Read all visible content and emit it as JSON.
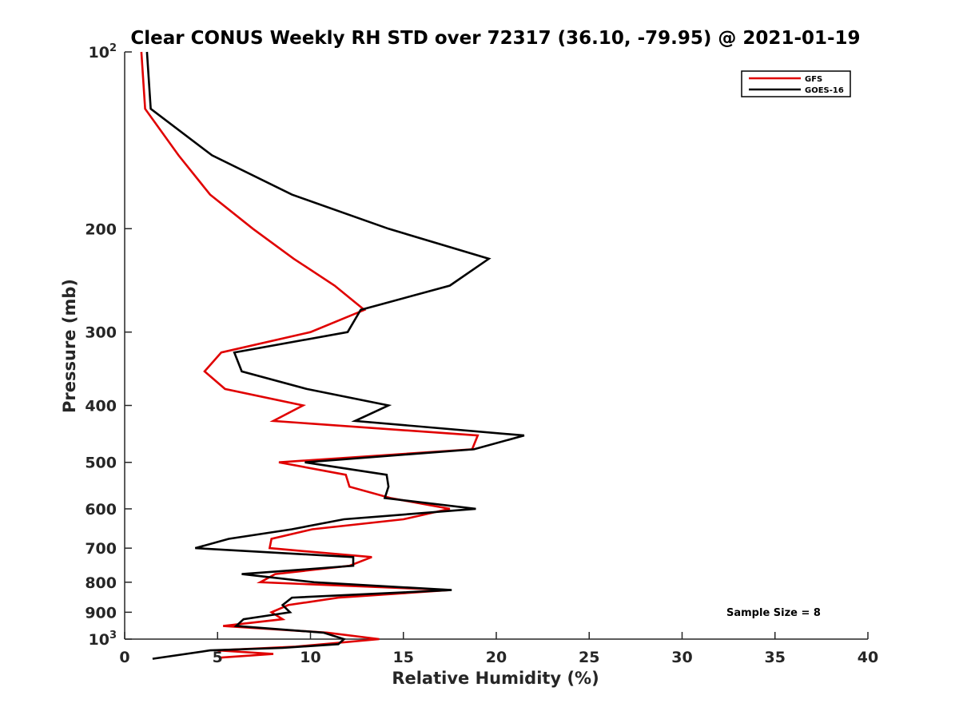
{
  "chart_data": {
    "type": "line",
    "title": "Clear CONUS Weekly RH STD over 72317 (36.10, -79.95) @ 2021-01-19",
    "xlabel": "Relative Humidity (%)",
    "ylabel": "Pressure (mb)",
    "xlim": [
      0,
      40
    ],
    "ylim": [
      100,
      1000
    ],
    "y_scale": "log",
    "y_reversed": true,
    "grid": false,
    "legend_position": "top-right",
    "x_ticks": [
      "0",
      "5",
      "10",
      "15",
      "20",
      "25",
      "30",
      "35",
      "40"
    ],
    "y_ticks": [
      {
        "value": 100,
        "base": "10",
        "exp": "2"
      },
      {
        "value": 200,
        "label": "200"
      },
      {
        "value": 300,
        "label": "300"
      },
      {
        "value": 400,
        "label": "400"
      },
      {
        "value": 500,
        "label": "500"
      },
      {
        "value": 600,
        "label": "600"
      },
      {
        "value": 700,
        "label": "700"
      },
      {
        "value": 800,
        "label": "800"
      },
      {
        "value": 900,
        "label": "900"
      },
      {
        "value": 1000,
        "base": "10",
        "exp": "3"
      }
    ],
    "annotation": "Sample Size = 8",
    "series": [
      {
        "name": "GFS",
        "color": "#e00000",
        "points": [
          [
            0.9,
            100
          ],
          [
            1.1,
            125
          ],
          [
            2.9,
            150
          ],
          [
            4.6,
            175
          ],
          [
            6.9,
            200
          ],
          [
            9.1,
            225
          ],
          [
            11.3,
            250
          ],
          [
            12.9,
            275
          ],
          [
            10.0,
            300
          ],
          [
            5.2,
            325
          ],
          [
            4.3,
            350
          ],
          [
            5.4,
            375
          ],
          [
            9.6,
            400
          ],
          [
            8.0,
            425
          ],
          [
            19.0,
            450
          ],
          [
            18.7,
            475
          ],
          [
            8.3,
            500
          ],
          [
            11.9,
            525
          ],
          [
            12.1,
            550
          ],
          [
            14.3,
            575
          ],
          [
            17.5,
            600
          ],
          [
            15.0,
            625
          ],
          [
            10.1,
            650
          ],
          [
            7.9,
            675
          ],
          [
            7.8,
            700
          ],
          [
            13.3,
            725
          ],
          [
            12.1,
            750
          ],
          [
            8.1,
            775
          ],
          [
            7.3,
            800
          ],
          [
            17.5,
            825
          ],
          [
            11.5,
            850
          ],
          [
            8.8,
            875
          ],
          [
            7.9,
            900
          ],
          [
            8.5,
            925
          ],
          [
            5.3,
            950
          ],
          [
            10.9,
            975
          ],
          [
            13.7,
            1000
          ],
          [
            9.2,
            1030
          ],
          [
            5.0,
            1045
          ],
          [
            8.0,
            1060
          ],
          [
            5.2,
            1075
          ]
        ]
      },
      {
        "name": "GOES-16",
        "color": "#000000",
        "points": [
          [
            1.2,
            100
          ],
          [
            1.4,
            125
          ],
          [
            4.7,
            150
          ],
          [
            9.0,
            175
          ],
          [
            14.2,
            200
          ],
          [
            19.6,
            225
          ],
          [
            17.5,
            250
          ],
          [
            12.7,
            275
          ],
          [
            12.0,
            300
          ],
          [
            5.9,
            325
          ],
          [
            6.3,
            350
          ],
          [
            9.8,
            375
          ],
          [
            14.2,
            400
          ],
          [
            12.4,
            425
          ],
          [
            21.5,
            450
          ],
          [
            18.8,
            475
          ],
          [
            9.7,
            500
          ],
          [
            14.1,
            525
          ],
          [
            14.2,
            550
          ],
          [
            14.0,
            575
          ],
          [
            18.9,
            600
          ],
          [
            11.8,
            625
          ],
          [
            9.0,
            650
          ],
          [
            5.6,
            675
          ],
          [
            3.8,
            700
          ],
          [
            12.3,
            725
          ],
          [
            12.3,
            750
          ],
          [
            6.3,
            775
          ],
          [
            10.2,
            800
          ],
          [
            17.6,
            825
          ],
          [
            9.0,
            850
          ],
          [
            8.5,
            875
          ],
          [
            8.9,
            900
          ],
          [
            6.4,
            925
          ],
          [
            6.0,
            950
          ],
          [
            10.7,
            975
          ],
          [
            11.8,
            1000
          ],
          [
            11.5,
            1020
          ],
          [
            8.5,
            1035
          ],
          [
            4.6,
            1045
          ],
          [
            1.5,
            1080
          ]
        ]
      }
    ]
  }
}
